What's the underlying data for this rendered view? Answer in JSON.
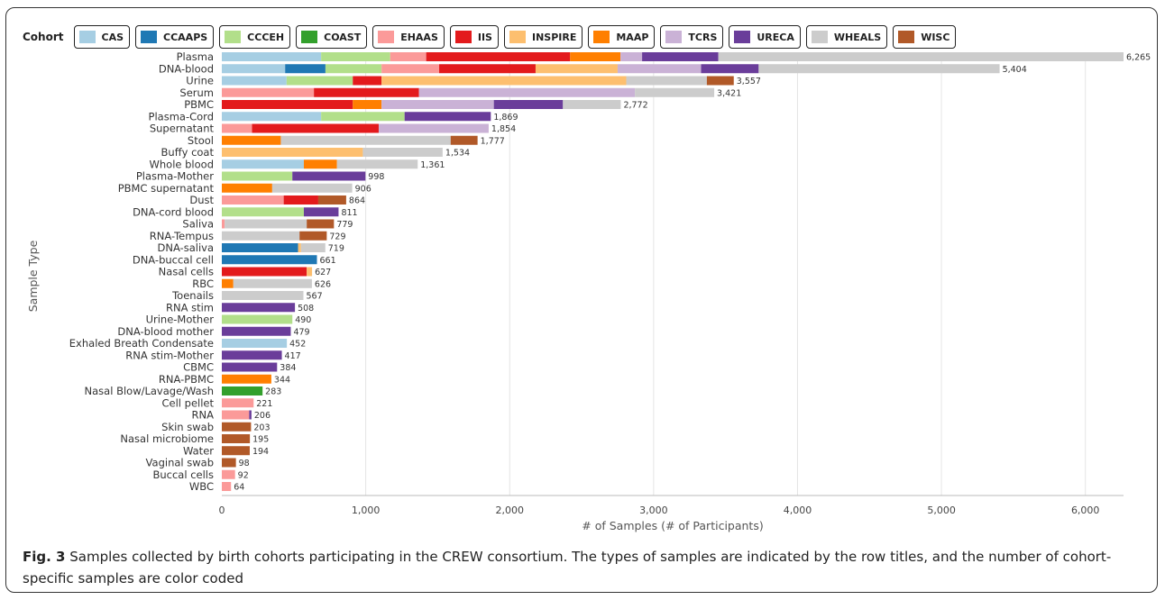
{
  "legend": {
    "title": "Cohort"
  },
  "caption": {
    "label": "Fig. 3",
    "text": "Samples collected by birth cohorts participating in the CREW consortium. The types of samples are indicated by the row titles, and the number of cohort-specific samples are color coded"
  },
  "colors": {
    "CAS": "#a6cee3",
    "CCAAPS": "#1f78b4",
    "CCCEH": "#b2df8a",
    "COAST": "#33a02c",
    "EHAAS": "#fb9a99",
    "IIS": "#e31a1c",
    "INSPIRE": "#fdbf6f",
    "MAAP": "#ff7f00",
    "TCRS": "#cab2d6",
    "URECA": "#6a3d9a",
    "WHEALS": "#cccccc",
    "WISC": "#b15928"
  },
  "chart_data": {
    "type": "bar",
    "orientation": "horizontal",
    "stacked": true,
    "xlabel": "# of Samples (# of Participants)",
    "ylabel": "Sample Type",
    "xlim": [
      0,
      6265
    ],
    "xticks": [
      0,
      1000,
      2000,
      3000,
      4000,
      5000,
      6000
    ],
    "xtick_labels": [
      "0",
      "1,000",
      "2,000",
      "3,000",
      "4,000",
      "5,000",
      "6,000"
    ],
    "grid": "vertical",
    "legend_position": "top",
    "cohorts": [
      "CAS",
      "CCAAPS",
      "CCCEH",
      "COAST",
      "EHAAS",
      "IIS",
      "INSPIRE",
      "MAAP",
      "TCRS",
      "URECA",
      "WHEALS",
      "WISC"
    ],
    "rows": [
      {
        "name": "Plasma",
        "total_label": "6,265",
        "segments": [
          {
            "c": "CAS",
            "v": 690
          },
          {
            "c": "CCCEH",
            "v": 480
          },
          {
            "c": "EHAAS",
            "v": 250
          },
          {
            "c": "IIS",
            "v": 1000
          },
          {
            "c": "MAAP",
            "v": 350
          },
          {
            "c": "TCRS",
            "v": 150
          },
          {
            "c": "URECA",
            "v": 530
          },
          {
            "c": "WHEALS",
            "v": 2815
          }
        ]
      },
      {
        "name": "DNA-blood",
        "total_label": "5,404",
        "segments": [
          {
            "c": "CAS",
            "v": 440
          },
          {
            "c": "CCAAPS",
            "v": 280
          },
          {
            "c": "CCCEH",
            "v": 390
          },
          {
            "c": "EHAAS",
            "v": 400
          },
          {
            "c": "IIS",
            "v": 670
          },
          {
            "c": "INSPIRE",
            "v": 570
          },
          {
            "c": "TCRS",
            "v": 580
          },
          {
            "c": "URECA",
            "v": 400
          },
          {
            "c": "WHEALS",
            "v": 1674
          }
        ]
      },
      {
        "name": "Urine",
        "total_label": "3,557",
        "segments": [
          {
            "c": "CAS",
            "v": 450
          },
          {
            "c": "CCCEH",
            "v": 460
          },
          {
            "c": "IIS",
            "v": 200
          },
          {
            "c": "INSPIRE",
            "v": 1700
          },
          {
            "c": "WHEALS",
            "v": 560
          },
          {
            "c": "WISC",
            "v": 187
          }
        ]
      },
      {
        "name": "Serum",
        "total_label": "3,421",
        "segments": [
          {
            "c": "EHAAS",
            "v": 640
          },
          {
            "c": "IIS",
            "v": 730
          },
          {
            "c": "TCRS",
            "v": 1500
          },
          {
            "c": "WHEALS",
            "v": 551
          }
        ]
      },
      {
        "name": "PBMC",
        "total_label": "2,772",
        "segments": [
          {
            "c": "IIS",
            "v": 910
          },
          {
            "c": "MAAP",
            "v": 200
          },
          {
            "c": "TCRS",
            "v": 780
          },
          {
            "c": "URECA",
            "v": 480
          },
          {
            "c": "WHEALS",
            "v": 402
          }
        ]
      },
      {
        "name": "Plasma-Cord",
        "total_label": "1,869",
        "segments": [
          {
            "c": "CAS",
            "v": 690
          },
          {
            "c": "CCCEH",
            "v": 580
          },
          {
            "c": "URECA",
            "v": 599
          }
        ]
      },
      {
        "name": "Supernatant",
        "total_label": "1,854",
        "segments": [
          {
            "c": "EHAAS",
            "v": 210
          },
          {
            "c": "IIS",
            "v": 880
          },
          {
            "c": "TCRS",
            "v": 764
          }
        ]
      },
      {
        "name": "Stool",
        "total_label": "1,777",
        "segments": [
          {
            "c": "MAAP",
            "v": 410
          },
          {
            "c": "WHEALS",
            "v": 1180
          },
          {
            "c": "WISC",
            "v": 187
          }
        ]
      },
      {
        "name": "Buffy coat",
        "total_label": "1,534",
        "segments": [
          {
            "c": "INSPIRE",
            "v": 980
          },
          {
            "c": "WHEALS",
            "v": 554
          }
        ]
      },
      {
        "name": "Whole blood",
        "total_label": "1,361",
        "segments": [
          {
            "c": "CAS",
            "v": 570
          },
          {
            "c": "MAAP",
            "v": 230
          },
          {
            "c": "WHEALS",
            "v": 561
          }
        ]
      },
      {
        "name": "Plasma-Mother",
        "total_label": "998",
        "segments": [
          {
            "c": "CCCEH",
            "v": 490
          },
          {
            "c": "URECA",
            "v": 508
          }
        ]
      },
      {
        "name": "PBMC supernatant",
        "total_label": "906",
        "segments": [
          {
            "c": "MAAP",
            "v": 350
          },
          {
            "c": "WHEALS",
            "v": 556
          }
        ]
      },
      {
        "name": "Dust",
        "total_label": "864",
        "segments": [
          {
            "c": "EHAAS",
            "v": 430
          },
          {
            "c": "IIS",
            "v": 240
          },
          {
            "c": "WISC",
            "v": 194
          }
        ]
      },
      {
        "name": "DNA-cord blood",
        "total_label": "811",
        "segments": [
          {
            "c": "CCCEH",
            "v": 570
          },
          {
            "c": "URECA",
            "v": 241
          }
        ]
      },
      {
        "name": "Saliva",
        "total_label": "779",
        "segments": [
          {
            "c": "EHAAS",
            "v": 20
          },
          {
            "c": "WHEALS",
            "v": 570
          },
          {
            "c": "WISC",
            "v": 189
          }
        ]
      },
      {
        "name": "RNA-Tempus",
        "total_label": "729",
        "segments": [
          {
            "c": "WHEALS",
            "v": 540
          },
          {
            "c": "WISC",
            "v": 189
          }
        ]
      },
      {
        "name": "DNA-saliva",
        "total_label": "719",
        "segments": [
          {
            "c": "CCAAPS",
            "v": 530
          },
          {
            "c": "INSPIRE",
            "v": 20
          },
          {
            "c": "WHEALS",
            "v": 169
          }
        ]
      },
      {
        "name": "DNA-buccal cell",
        "total_label": "661",
        "segments": [
          {
            "c": "CCAAPS",
            "v": 661
          }
        ]
      },
      {
        "name": "Nasal cells",
        "total_label": "627",
        "segments": [
          {
            "c": "IIS",
            "v": 590
          },
          {
            "c": "INSPIRE",
            "v": 37
          }
        ]
      },
      {
        "name": "RBC",
        "total_label": "626",
        "segments": [
          {
            "c": "MAAP",
            "v": 80
          },
          {
            "c": "WHEALS",
            "v": 546
          }
        ]
      },
      {
        "name": "Toenails",
        "total_label": "567",
        "segments": [
          {
            "c": "WHEALS",
            "v": 567
          }
        ]
      },
      {
        "name": "RNA stim",
        "total_label": "508",
        "segments": [
          {
            "c": "URECA",
            "v": 508
          }
        ]
      },
      {
        "name": "Urine-Mother",
        "total_label": "490",
        "segments": [
          {
            "c": "CCCEH",
            "v": 490
          }
        ]
      },
      {
        "name": "DNA-blood mother",
        "total_label": "479",
        "segments": [
          {
            "c": "URECA",
            "v": 479
          }
        ]
      },
      {
        "name": "Exhaled Breath Condensate",
        "total_label": "452",
        "segments": [
          {
            "c": "CAS",
            "v": 452
          }
        ]
      },
      {
        "name": "RNA stim-Mother",
        "total_label": "417",
        "segments": [
          {
            "c": "URECA",
            "v": 417
          }
        ]
      },
      {
        "name": "CBMC",
        "total_label": "384",
        "segments": [
          {
            "c": "URECA",
            "v": 384
          }
        ]
      },
      {
        "name": "RNA-PBMC",
        "total_label": "344",
        "segments": [
          {
            "c": "MAAP",
            "v": 344
          }
        ]
      },
      {
        "name": "Nasal Blow/Lavage/Wash",
        "total_label": "283",
        "segments": [
          {
            "c": "COAST",
            "v": 283
          }
        ]
      },
      {
        "name": "Cell pellet",
        "total_label": "221",
        "segments": [
          {
            "c": "EHAAS",
            "v": 221
          }
        ]
      },
      {
        "name": "RNA",
        "total_label": "206",
        "segments": [
          {
            "c": "EHAAS",
            "v": 190
          },
          {
            "c": "URECA",
            "v": 16
          }
        ]
      },
      {
        "name": "Skin swab",
        "total_label": "203",
        "segments": [
          {
            "c": "WISC",
            "v": 203
          }
        ]
      },
      {
        "name": "Nasal microbiome",
        "total_label": "195",
        "segments": [
          {
            "c": "WISC",
            "v": 195
          }
        ]
      },
      {
        "name": "Water",
        "total_label": "194",
        "segments": [
          {
            "c": "WISC",
            "v": 194
          }
        ]
      },
      {
        "name": "Vaginal swab",
        "total_label": "98",
        "segments": [
          {
            "c": "WISC",
            "v": 98
          }
        ]
      },
      {
        "name": "Buccal cells",
        "total_label": "92",
        "segments": [
          {
            "c": "EHAAS",
            "v": 92
          }
        ]
      },
      {
        "name": "WBC",
        "total_label": "64",
        "segments": [
          {
            "c": "EHAAS",
            "v": 64
          }
        ]
      }
    ]
  }
}
